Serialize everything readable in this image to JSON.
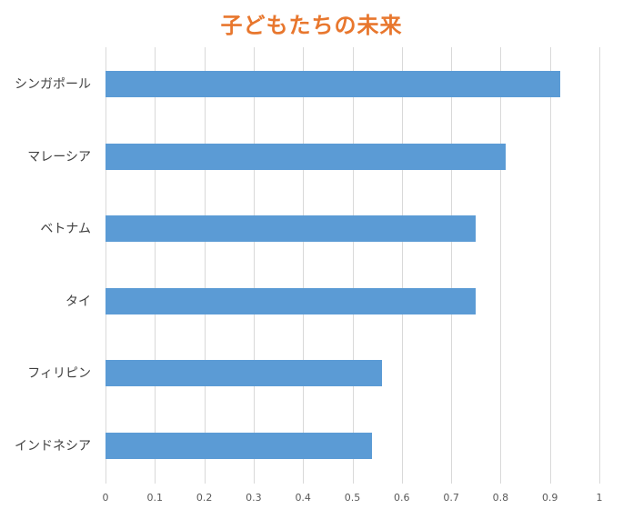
{
  "chart_data": {
    "type": "bar",
    "orientation": "horizontal",
    "title": "子どもたちの未来",
    "categories": [
      "シンガポール",
      "マレーシア",
      "ベトナム",
      "タイ",
      "フィリピン",
      "インドネシア"
    ],
    "values": [
      0.92,
      0.81,
      0.75,
      0.75,
      0.56,
      0.54
    ],
    "xlabel": "",
    "ylabel": "",
    "xlim": [
      0,
      1
    ],
    "xticks": [
      "0",
      "0.1",
      "0.2",
      "0.3",
      "0.4",
      "0.5",
      "0.6",
      "0.7",
      "0.8",
      "0.9",
      "1"
    ],
    "grid": true,
    "legend": false,
    "bar_color": "#5B9BD5",
    "title_color": "#E8772E"
  }
}
